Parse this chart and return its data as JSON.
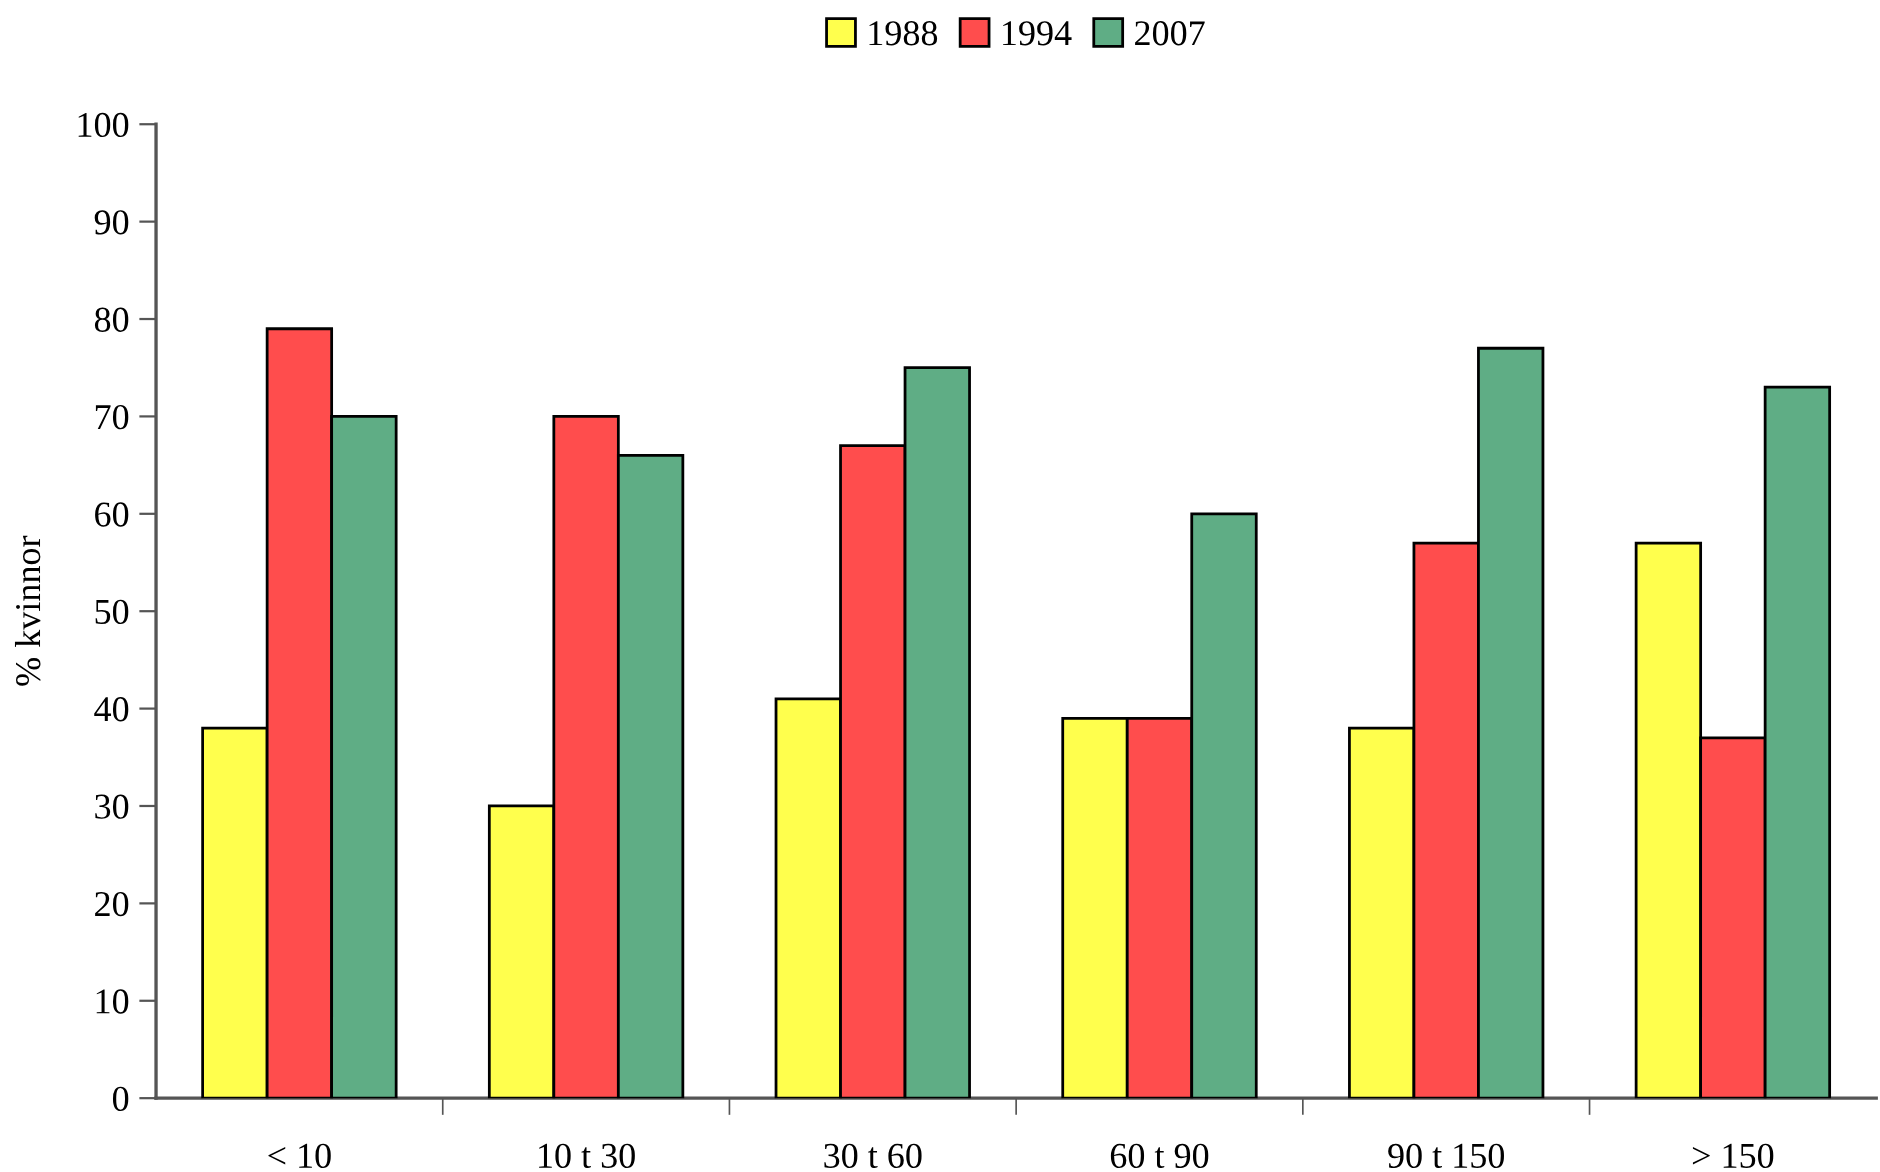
{
  "chart_data": {
    "type": "bar",
    "ylabel": "% kvinnor",
    "categories": [
      "< 10",
      "10 t 30",
      "30 t 60",
      "60 t 90",
      "90 t 150",
      "> 150"
    ],
    "series": [
      {
        "name": "1988",
        "color": "#ffff4d",
        "values": [
          38,
          30,
          41,
          39,
          38,
          57
        ]
      },
      {
        "name": "1994",
        "color": "#ff4d4d",
        "values": [
          79,
          70,
          67,
          39,
          57,
          37
        ]
      },
      {
        "name": "2007",
        "color": "#5fad85",
        "values": [
          70,
          66,
          75,
          60,
          77,
          73
        ]
      }
    ],
    "ylim": [
      0,
      100
    ],
    "yticks": [
      0,
      10,
      20,
      30,
      40,
      50,
      60,
      70,
      80,
      90,
      100
    ],
    "grid": false,
    "legend": "top"
  }
}
